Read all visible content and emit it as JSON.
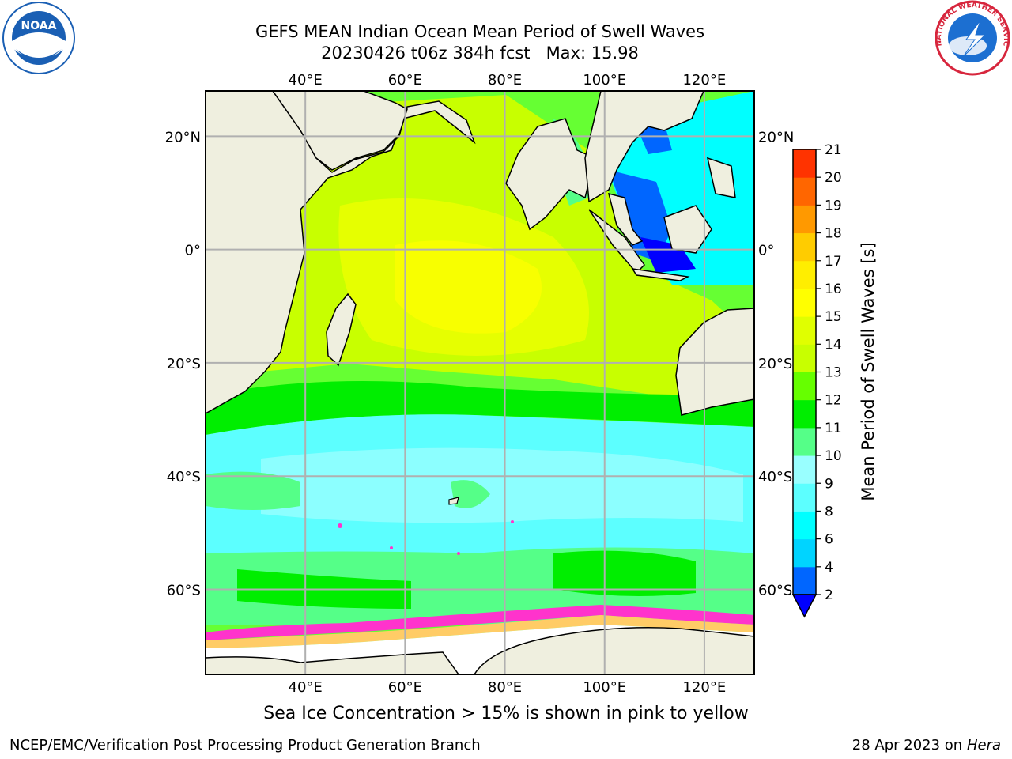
{
  "header": {
    "title_line1": "GEFS MEAN Indian Ocean Mean Period of Swell Waves",
    "title_line2": "20230426 t06z 384h fcst   Max: 15.98"
  },
  "logos": {
    "left": {
      "name": "NOAA",
      "text": "NOAA",
      "colors": {
        "inner": "#1a5fb4",
        "outer": "#ffffff"
      }
    },
    "right": {
      "name": "National Weather Service",
      "text": "NATIONAL WEATHER SERVICE",
      "colors": {
        "ring": "#d7263d",
        "inner": "#1c6fd1"
      }
    }
  },
  "map": {
    "lon_ticks": [
      "40°E",
      "60°E",
      "80°E",
      "100°E",
      "120°E"
    ],
    "lat_ticks": [
      "20°N",
      "0°",
      "20°S",
      "40°S",
      "60°S"
    ],
    "lon_values": [
      40,
      60,
      80,
      100,
      120
    ],
    "lat_values": [
      20,
      0,
      -20,
      -40,
      -60
    ],
    "extent": {
      "lon": [
        20,
        130
      ],
      "lat": [
        -75,
        28
      ]
    },
    "colors": {
      "land": "#efefdf",
      "coast": "#000000",
      "grid": "#b0b0b0"
    }
  },
  "colorbar": {
    "title": "Mean Period of Swell Waves [s]",
    "tick_labels": [
      "21",
      "20",
      "19",
      "18",
      "17",
      "16",
      "15",
      "14",
      "13",
      "12",
      "11",
      "10",
      "9",
      "8",
      "6",
      "4",
      "2"
    ],
    "levels": [
      2,
      4,
      6,
      8,
      9,
      10,
      11,
      12,
      13,
      14,
      15,
      16,
      17,
      18,
      19,
      20,
      21
    ],
    "colors": [
      "#0066ff",
      "#00d4ff",
      "#00ffff",
      "#5cffff",
      "#99ffff",
      "#55ff88",
      "#00ee00",
      "#66ff00",
      "#c8ff00",
      "#e0ff00",
      "#ffff00",
      "#ffee00",
      "#ffcc00",
      "#ff9900",
      "#ff6600",
      "#ff3300",
      "#ff0000"
    ],
    "extend_color": "#0000ff"
  },
  "footer": {
    "note": "Sea Ice Concentration > 15% is shown in pink to yellow",
    "credit": "NCEP/EMC/Verification Post Processing Product Generation Branch",
    "date": "28 Apr 2023 on ",
    "host": "Hera"
  }
}
